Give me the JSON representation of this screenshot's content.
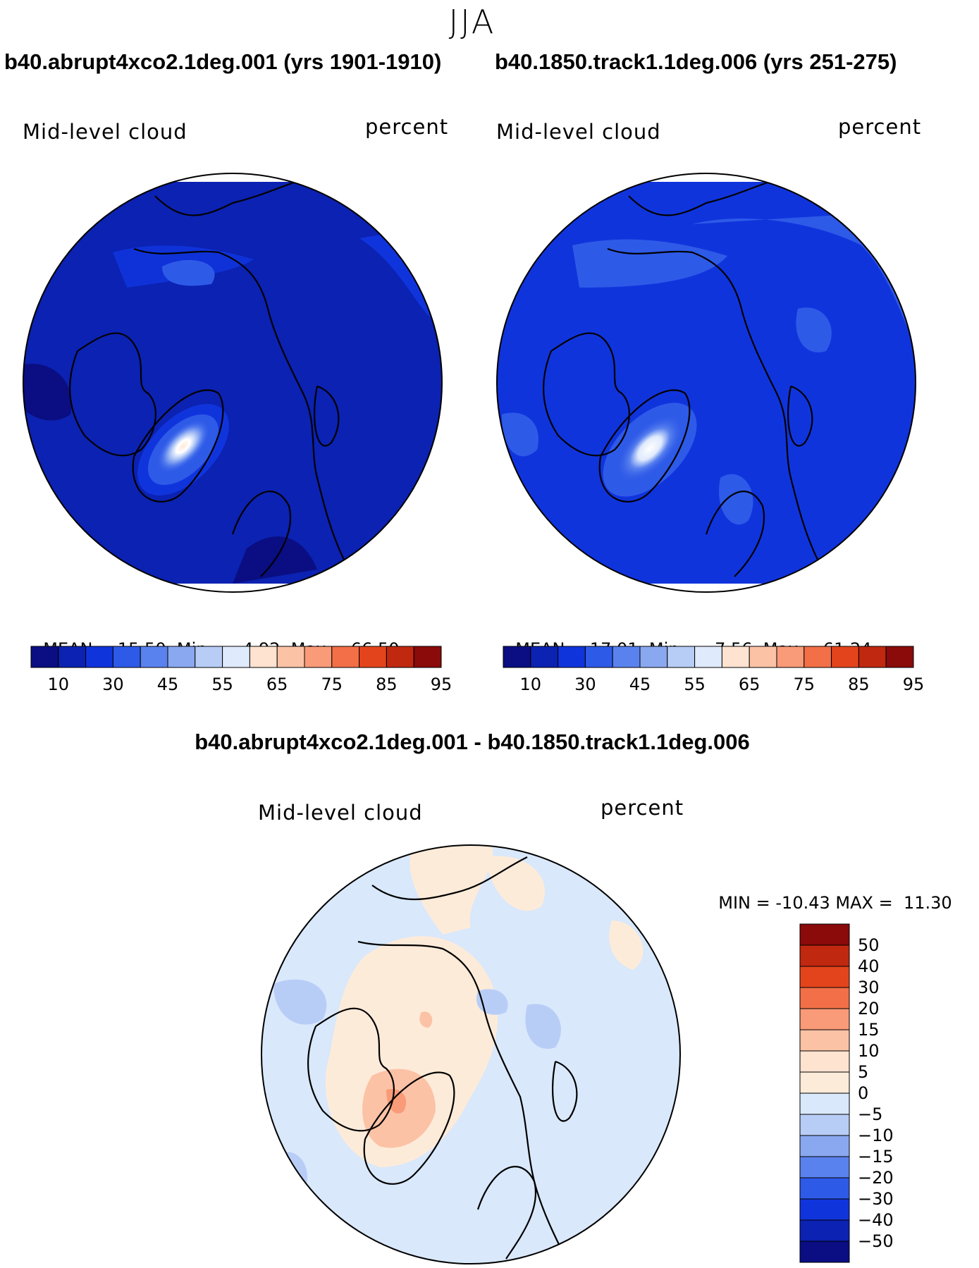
{
  "season": "JJA",
  "chart_data": [
    {
      "type": "heatmap",
      "title": "b40.abrupt4xco2.1deg.001 (yrs 1901-1910)",
      "variable": "Mid-level cloud",
      "units": "percent",
      "stats": {
        "mean_label": "MEAN=",
        "mean": "15.50",
        "min_label": "Min=",
        "min": "4.92",
        "max_label": "Max=",
        "max": "66.50"
      },
      "colorbar": {
        "ticks": [
          "10",
          "30",
          "45",
          "55",
          "65",
          "75",
          "85",
          "95"
        ],
        "colors": [
          "#0a0e82",
          "#0b22b2",
          "#1034dc",
          "#2e5ae8",
          "#5a82ee",
          "#8aa8f0",
          "#b8cdf6",
          "#dfeafc",
          "#fde3d0",
          "#fcc2a6",
          "#f99a78",
          "#f26f47",
          "#e4441c",
          "#c02810",
          "#8b0a0a"
        ]
      }
    },
    {
      "type": "heatmap",
      "title": "b40.1850.track1.1deg.006 (yrs 251-275)",
      "variable": "Mid-level cloud",
      "units": "percent",
      "stats": {
        "mean_label": "MEAN=",
        "mean": "17.01",
        "min_label": "Min=",
        "min": "7.56",
        "max_label": "Max=",
        "max": "61.24"
      },
      "colorbar": {
        "ticks": [
          "10",
          "30",
          "45",
          "55",
          "65",
          "75",
          "85",
          "95"
        ],
        "colors": [
          "#0a0e82",
          "#0b22b2",
          "#1034dc",
          "#2e5ae8",
          "#5a82ee",
          "#8aa8f0",
          "#b8cdf6",
          "#dfeafc",
          "#fde3d0",
          "#fcc2a6",
          "#f99a78",
          "#f26f47",
          "#e4441c",
          "#c02810",
          "#8b0a0a"
        ]
      }
    },
    {
      "type": "heatmap",
      "title": "b40.abrupt4xco2.1deg.001 - b40.1850.track1.1deg.006",
      "variable": "Mid-level cloud",
      "units": "percent",
      "stats": {
        "min_label": "MIN =",
        "min": "-10.43",
        "max_label": "MAX =",
        "max": "11.30"
      },
      "colorbar": {
        "ticks": [
          "50",
          "40",
          "30",
          "20",
          "15",
          "10",
          "5",
          "0",
          "-5",
          "-10",
          "-15",
          "-20",
          "-30",
          "-40",
          "-50"
        ],
        "colors": [
          "#8b0a0a",
          "#c02810",
          "#e4441c",
          "#f26f47",
          "#f99a78",
          "#fcc2a6",
          "#fde3d0",
          "#fdebd9",
          "#d9e8fb",
          "#b8cdf6",
          "#8aa8f0",
          "#5a82ee",
          "#2e5ae8",
          "#1034dc",
          "#0b22b2",
          "#0a0e82"
        ]
      }
    }
  ]
}
